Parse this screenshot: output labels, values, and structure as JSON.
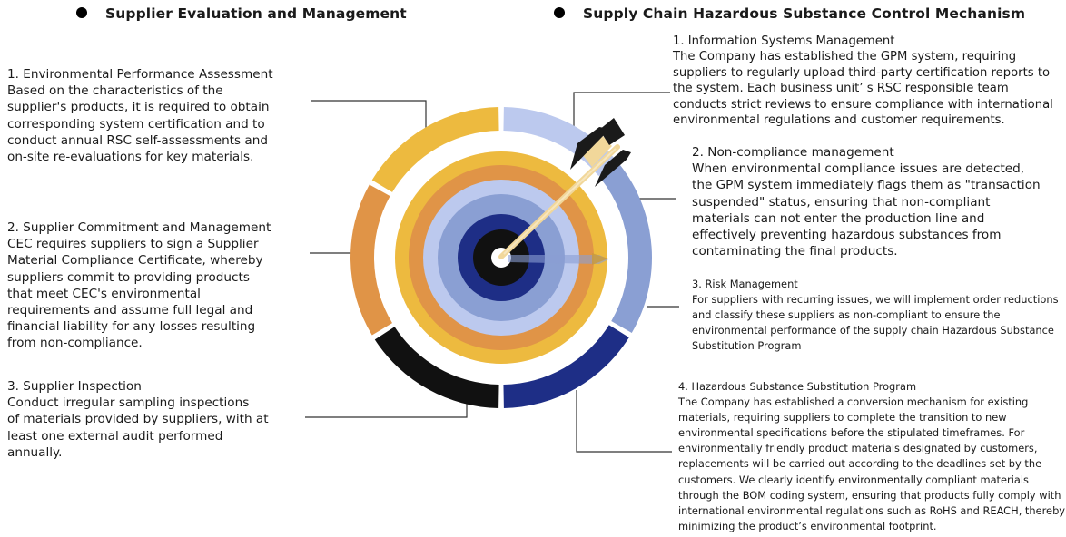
{
  "headings": {
    "left": "Supplier Evaluation and Management",
    "right": "Supply Chain Hazardous Substance Control Mechanism"
  },
  "left_items": [
    {
      "title": "1. Environmental Performance Assessment",
      "lines": [
        "Based on the characteristics of the",
        "supplier's products, it is required to obtain",
        "corresponding system certification and to",
        "conduct annual RSC self-assessments and",
        "on-site re-evaluations for key materials."
      ]
    },
    {
      "title": "2. Supplier Commitment and Management",
      "lines": [
        "CEC requires suppliers to sign a Supplier",
        "Material Compliance Certificate, whereby",
        "suppliers commit to providing products",
        "that meet CEC's environmental",
        "requirements and assume full legal and",
        "financial liability for any losses resulting",
        "from non-compliance."
      ]
    },
    {
      "title": "3. Supplier Inspection",
      "lines": [
        "Conduct irregular sampling inspections",
        "of materials provided by suppliers, with at",
        "least one external audit performed",
        "annually."
      ]
    }
  ],
  "right_items": [
    {
      "title": "1. Information Systems Management",
      "lines": [
        "The Company has established the GPM system, requiring",
        "suppliers to regularly upload third-party certification reports to",
        "the system. Each business unit’ s RSC responsible team",
        "conducts strict reviews to ensure compliance with international",
        "environmental regulations and customer requirements."
      ]
    },
    {
      "title": "2. Non-compliance management",
      "lines": [
        "When environmental compliance issues are detected,",
        "the GPM system immediately flags them as \"transaction",
        "suspended\" status, ensuring that non-compliant",
        "materials can not enter the production line and",
        "effectively preventing hazardous substances from",
        "contaminating the final products."
      ]
    },
    {
      "title": "3. Risk Management",
      "lines": [
        "For suppliers with recurring issues, we will implement order reductions",
        "and classify these suppliers as non-compliant to ensure the",
        "environmental performance of the supply chain Hazardous Substance",
        "Substitution Program"
      ]
    },
    {
      "title": "4. Hazardous Substance Substitution Program",
      "lines": [
        "The Company has established a conversion mechanism for existing",
        "materials, requiring suppliers to complete the transition to new",
        "environmental specifications before the stipulated timeframes. For",
        "environmentally friendly product materials designated by customers,",
        "replacements will be carried out according to the deadlines set by the",
        "customers. We clearly identify environmentally compliant materials",
        "through the BOM coding system, ensuring that products fully comply with",
        "international environmental regulations such as RoHS and REACH, thereby",
        "minimizing the product’s environmental footprint."
      ]
    }
  ],
  "colors": {
    "yellow": "#EDBA3F",
    "orange": "#E09447",
    "black": "#111111",
    "light_blue": "#BCC9EE",
    "mid_blue": "#8A9FD3",
    "navy": "#1E2E86",
    "connector": "#333333"
  },
  "icons": [
    "dart-arrow-icon",
    "bullet-dot-icon"
  ]
}
